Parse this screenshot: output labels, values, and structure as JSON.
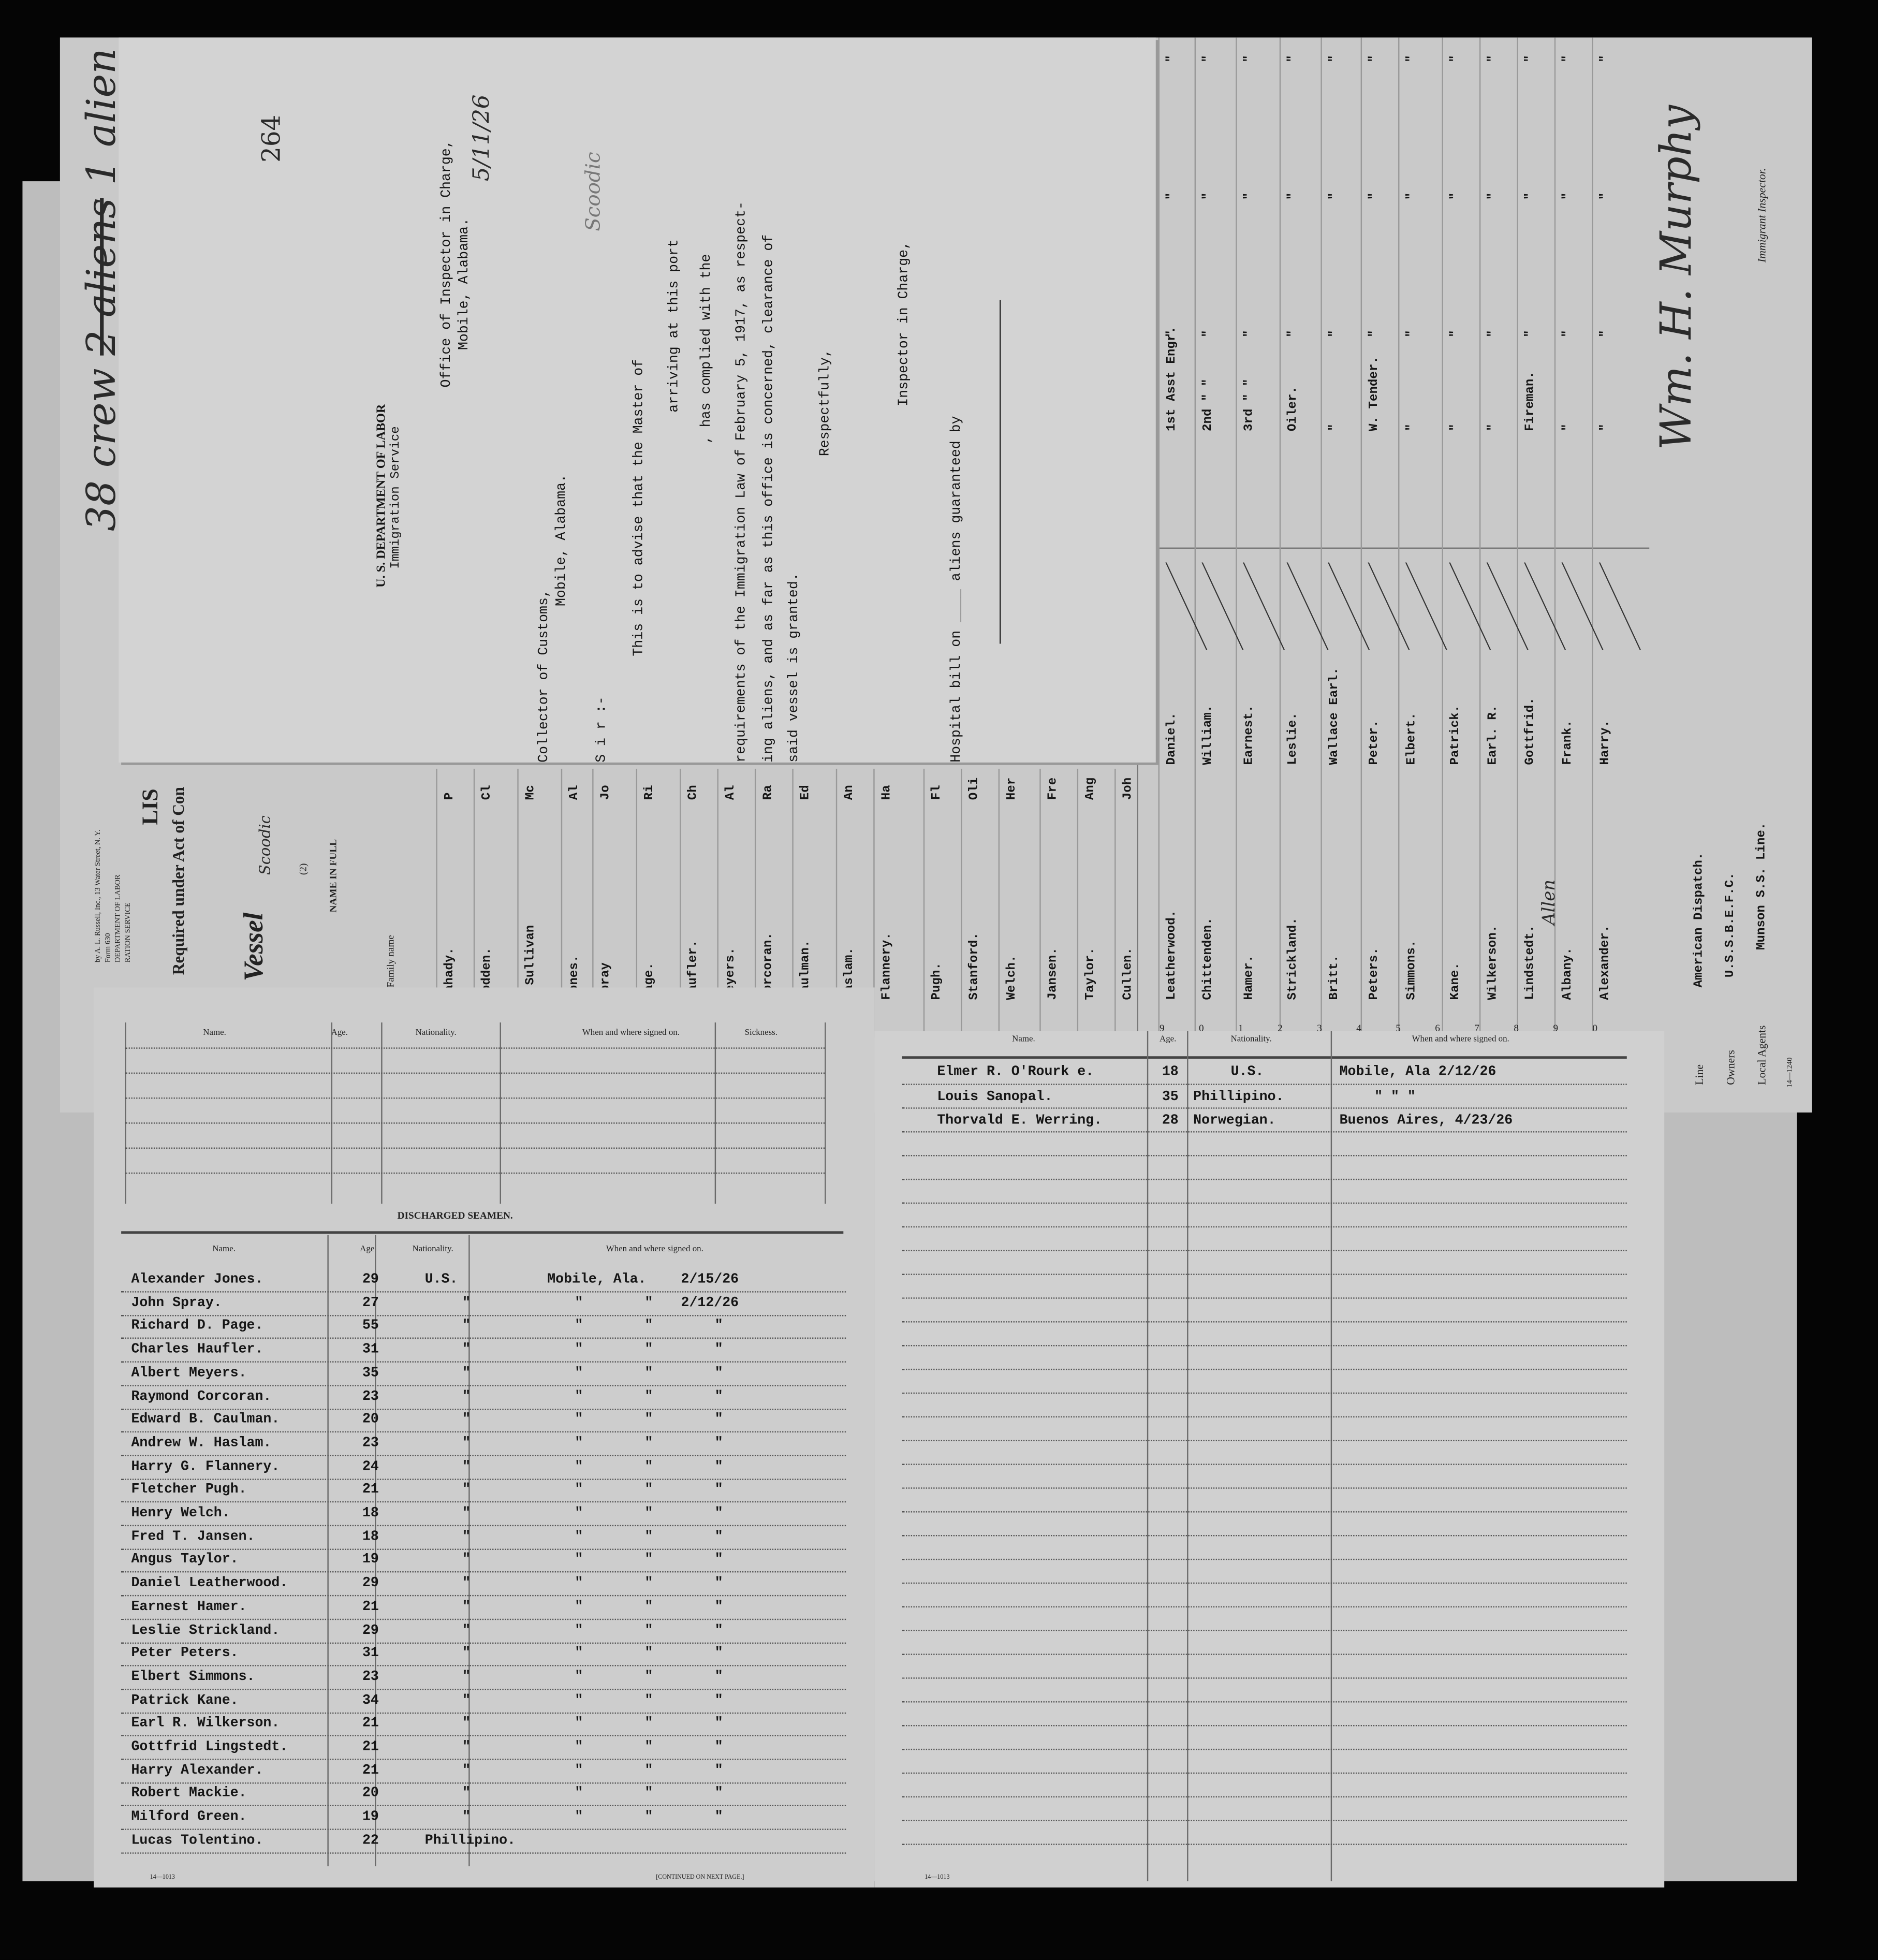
{
  "annotations": {
    "crew_count": "38 crew",
    "aliens_struck": "2 aliens",
    "aliens": "1 alien",
    "page_number": "264",
    "inspector_signature": "Wm. H. Murphy",
    "inspector_title": "Immigrant Inspector."
  },
  "manifest": {
    "printer": "by A. L. Russell, Inc., 13 Water Street, N. Y.",
    "form": "Form 630",
    "department": "DEPARTMENT OF LABOR",
    "service": "RATION SERVICE",
    "title_fragment": "LIS",
    "act_fragment": "Required under Act of Con",
    "vessel_label": "Vessel",
    "vessel_name": "Scoodic",
    "col_number": "(2)",
    "col_name_header": "NAME IN FULL",
    "col_family": "Family name",
    "form_number_top": "14—1240",
    "crew": [
      {
        "family": "Mahady.",
        "given": "P"
      },
      {
        "family": "Bodden.",
        "given": "Cl"
      },
      {
        "family": "O'Sullivan",
        "given": "Mc"
      },
      {
        "family": "Jones.",
        "given": "Al"
      },
      {
        "family": "Spray",
        "given": "Jo"
      },
      {
        "family": "Page.",
        "given": "Ri"
      },
      {
        "family": "Haufler.",
        "given": "Ch"
      },
      {
        "family": "Meyers.",
        "given": "Al"
      },
      {
        "family": "Corcoran.",
        "given": "Ra"
      },
      {
        "family": "Caulman.",
        "given": "Ed"
      },
      {
        "family": "Haslam.",
        "given": "An"
      },
      {
        "family": "Flannery.",
        "given": "Ha"
      },
      {
        "family": "Pugh.",
        "given": "Fl"
      },
      {
        "family": "Stanford.",
        "given": "Oli"
      },
      {
        "family": "Welch.",
        "given": "Her"
      },
      {
        "family": "Jansen.",
        "given": "Fre"
      },
      {
        "family": "Taylor.",
        "given": "Ang"
      },
      {
        "family": "Cullen.",
        "given": "Joh"
      },
      {
        "family": "Leatherwood.",
        "given": "Daniel.",
        "rating": "1st Asst Engr."
      },
      {
        "family": "Chittenden.",
        "given": "William.",
        "rating": "2nd  \"  \""
      },
      {
        "family": "Hamer.",
        "given": "Earnest.",
        "rating": "3rd  \"  \""
      },
      {
        "family": "Strickland.",
        "given": "Leslie.",
        "rating": "Oiler."
      },
      {
        "family": "Britt.",
        "given": "Wallace Earl.",
        "rating": "\""
      },
      {
        "family": "Peters.",
        "given": "Peter.",
        "rating": "W. Tender."
      },
      {
        "family": "Simmons.",
        "given": "Elbert.",
        "rating": "\""
      },
      {
        "family": "Kane.",
        "given": "Patrick.",
        "rating": "\""
      },
      {
        "family": "Wilkerson.",
        "given": "Earl. R.",
        "rating": "\""
      },
      {
        "family": "Lindstedt.",
        "given": "Gottfrid.",
        "rating": "Fireman."
      },
      {
        "family": "Albany.",
        "given": "Frank.",
        "rating": "\"",
        "handwritten": "Allen"
      },
      {
        "family": "Alexander.",
        "given": "Harry.",
        "rating": "\""
      }
    ],
    "row_numbers": [
      "9",
      "0",
      "1",
      "2",
      "3",
      "4",
      "5",
      "6",
      "7",
      "8",
      "9",
      "0"
    ],
    "ditto": "\"",
    "line_label": "Line",
    "line_value": "American Dispatch.",
    "owners_label": "Owners",
    "owners_value": "U.S.S.B.E.F.C.",
    "agents_label": "Local Agents",
    "agents_value": "Munson S.S. Line."
  },
  "letter": {
    "dept": "U. S. DEPARTMENT OF LABOR",
    "service": "Immigration Service",
    "office": "Office of Inspector in Charge,",
    "office_city": "Mobile, Alabama.",
    "addressee": "Collector of Customs,",
    "addressee_city": "Mobile, Alabama.",
    "salutation": "S i r :-",
    "line1": "This is to advise that the Master of",
    "line2": "arriving at this port",
    "line3": ", has complied with the",
    "line4": "requirements of the Immigration Law of February 5, 1917, as respect-",
    "line5": "ing aliens, and as far as this office is concerned, clearance of",
    "line6": "said vessel is granted.",
    "closing": "Respectfully,",
    "signer_title": "Inspector in Charge,",
    "hospital": "Hospital bill on ____ aliens guaranteed by",
    "handwritten_date": "5/11/26",
    "handwritten_vessel": "Scoodic"
  },
  "sickness_table": {
    "headers": [
      "Name.",
      "Age.",
      "Nationality.",
      "When and where signed on.",
      "Sickness."
    ]
  },
  "discharged": {
    "title": "DISCHARGED SEAMEN.",
    "headers": [
      "Name.",
      "Age.",
      "Nationality.",
      "When and where signed on."
    ],
    "rows": [
      {
        "name": "Alexander Jones.",
        "age": "29",
        "nat": "U.S.",
        "w1": "Mobile, Ala.",
        "w2": "",
        "date": "2/15/26"
      },
      {
        "name": "John Spray.",
        "age": "27",
        "nat": "\"",
        "w1": "\"",
        "w2": "\"",
        "date": "2/12/26"
      },
      {
        "name": "Richard D. Page.",
        "age": "55",
        "nat": "\"",
        "w1": "\"",
        "w2": "\"",
        "date": "\""
      },
      {
        "name": "Charles Haufler.",
        "age": "31",
        "nat": "\"",
        "w1": "\"",
        "w2": "\"",
        "date": "\""
      },
      {
        "name": "Albert Meyers.",
        "age": "35",
        "nat": "\"",
        "w1": "\"",
        "w2": "\"",
        "date": "\""
      },
      {
        "name": "Raymond Corcoran.",
        "age": "23",
        "nat": "\"",
        "w1": "\"",
        "w2": "\"",
        "date": "\""
      },
      {
        "name": "Edward B. Caulman.",
        "age": "20",
        "nat": "\"",
        "w1": "\"",
        "w2": "\"",
        "date": "\""
      },
      {
        "name": "Andrew W. Haslam.",
        "age": "23",
        "nat": "\"",
        "w1": "\"",
        "w2": "\"",
        "date": "\""
      },
      {
        "name": "Harry G. Flannery.",
        "age": "24",
        "nat": "\"",
        "w1": "\"",
        "w2": "\"",
        "date": "\""
      },
      {
        "name": "Fletcher Pugh.",
        "age": "21",
        "nat": "\"",
        "w1": "\"",
        "w2": "\"",
        "date": "\""
      },
      {
        "name": "Henry Welch.",
        "age": "18",
        "nat": "\"",
        "w1": "\"",
        "w2": "\"",
        "date": "\""
      },
      {
        "name": "Fred T. Jansen.",
        "age": "18",
        "nat": "\"",
        "w1": "\"",
        "w2": "\"",
        "date": "\""
      },
      {
        "name": "Angus Taylor.",
        "age": "19",
        "nat": "\"",
        "w1": "\"",
        "w2": "\"",
        "date": "\""
      },
      {
        "name": "Daniel Leatherwood.",
        "age": "29",
        "nat": "\"",
        "w1": "\"",
        "w2": "\"",
        "date": "\""
      },
      {
        "name": "Earnest Hamer.",
        "age": "21",
        "nat": "\"",
        "w1": "\"",
        "w2": "\"",
        "date": "\""
      },
      {
        "name": "Leslie Strickland.",
        "age": "29",
        "nat": "\"",
        "w1": "\"",
        "w2": "\"",
        "date": "\""
      },
      {
        "name": "Peter Peters.",
        "age": "31",
        "nat": "\"",
        "w1": "\"",
        "w2": "\"",
        "date": "\""
      },
      {
        "name": "Elbert Simmons.",
        "age": "23",
        "nat": "\"",
        "w1": "\"",
        "w2": "\"",
        "date": "\""
      },
      {
        "name": "Patrick Kane.",
        "age": "34",
        "nat": "\"",
        "w1": "\"",
        "w2": "\"",
        "date": "\""
      },
      {
        "name": "Earl R. Wilkerson.",
        "age": "21",
        "nat": "\"",
        "w1": "\"",
        "w2": "\"",
        "date": "\""
      },
      {
        "name": "Gottfrid Lingstedt.",
        "age": "21",
        "nat": "\"",
        "w1": "\"",
        "w2": "\"",
        "date": "\""
      },
      {
        "name": "Harry Alexander.",
        "age": "21",
        "nat": "\"",
        "w1": "\"",
        "w2": "\"",
        "date": "\""
      },
      {
        "name": "Robert Mackie.",
        "age": "20",
        "nat": "\"",
        "w1": "\"",
        "w2": "\"",
        "date": "\""
      },
      {
        "name": "Milford Green.",
        "age": "19",
        "nat": "\"",
        "w1": "\"",
        "w2": "\"",
        "date": "\""
      },
      {
        "name": "Lucas Tolentino.",
        "age": "22",
        "nat": "Phillipino.",
        "w1": "",
        "w2": "",
        "date": ""
      }
    ],
    "form_number": "14—1013",
    "continued": "[CONTINUED ON NEXT PAGE.]"
  },
  "engaged": {
    "headers": [
      "Name.",
      "Age.",
      "Nationality.",
      "When and where signed on."
    ],
    "rows": [
      {
        "name": "Elmer R. O'Rourk e.",
        "age": "18",
        "nat": "U.S.",
        "where": "Mobile, Ala 2/12/26"
      },
      {
        "name": "Louis Sanopal.",
        "age": "35",
        "nat": "Phillipino.",
        "where": "\"      \"      \""
      },
      {
        "name": "Thorvald E. Werring.",
        "age": "28",
        "nat": "Norwegian.",
        "where": "Buenos Aires, 4/23/26"
      }
    ],
    "form_number": "14—1013"
  }
}
